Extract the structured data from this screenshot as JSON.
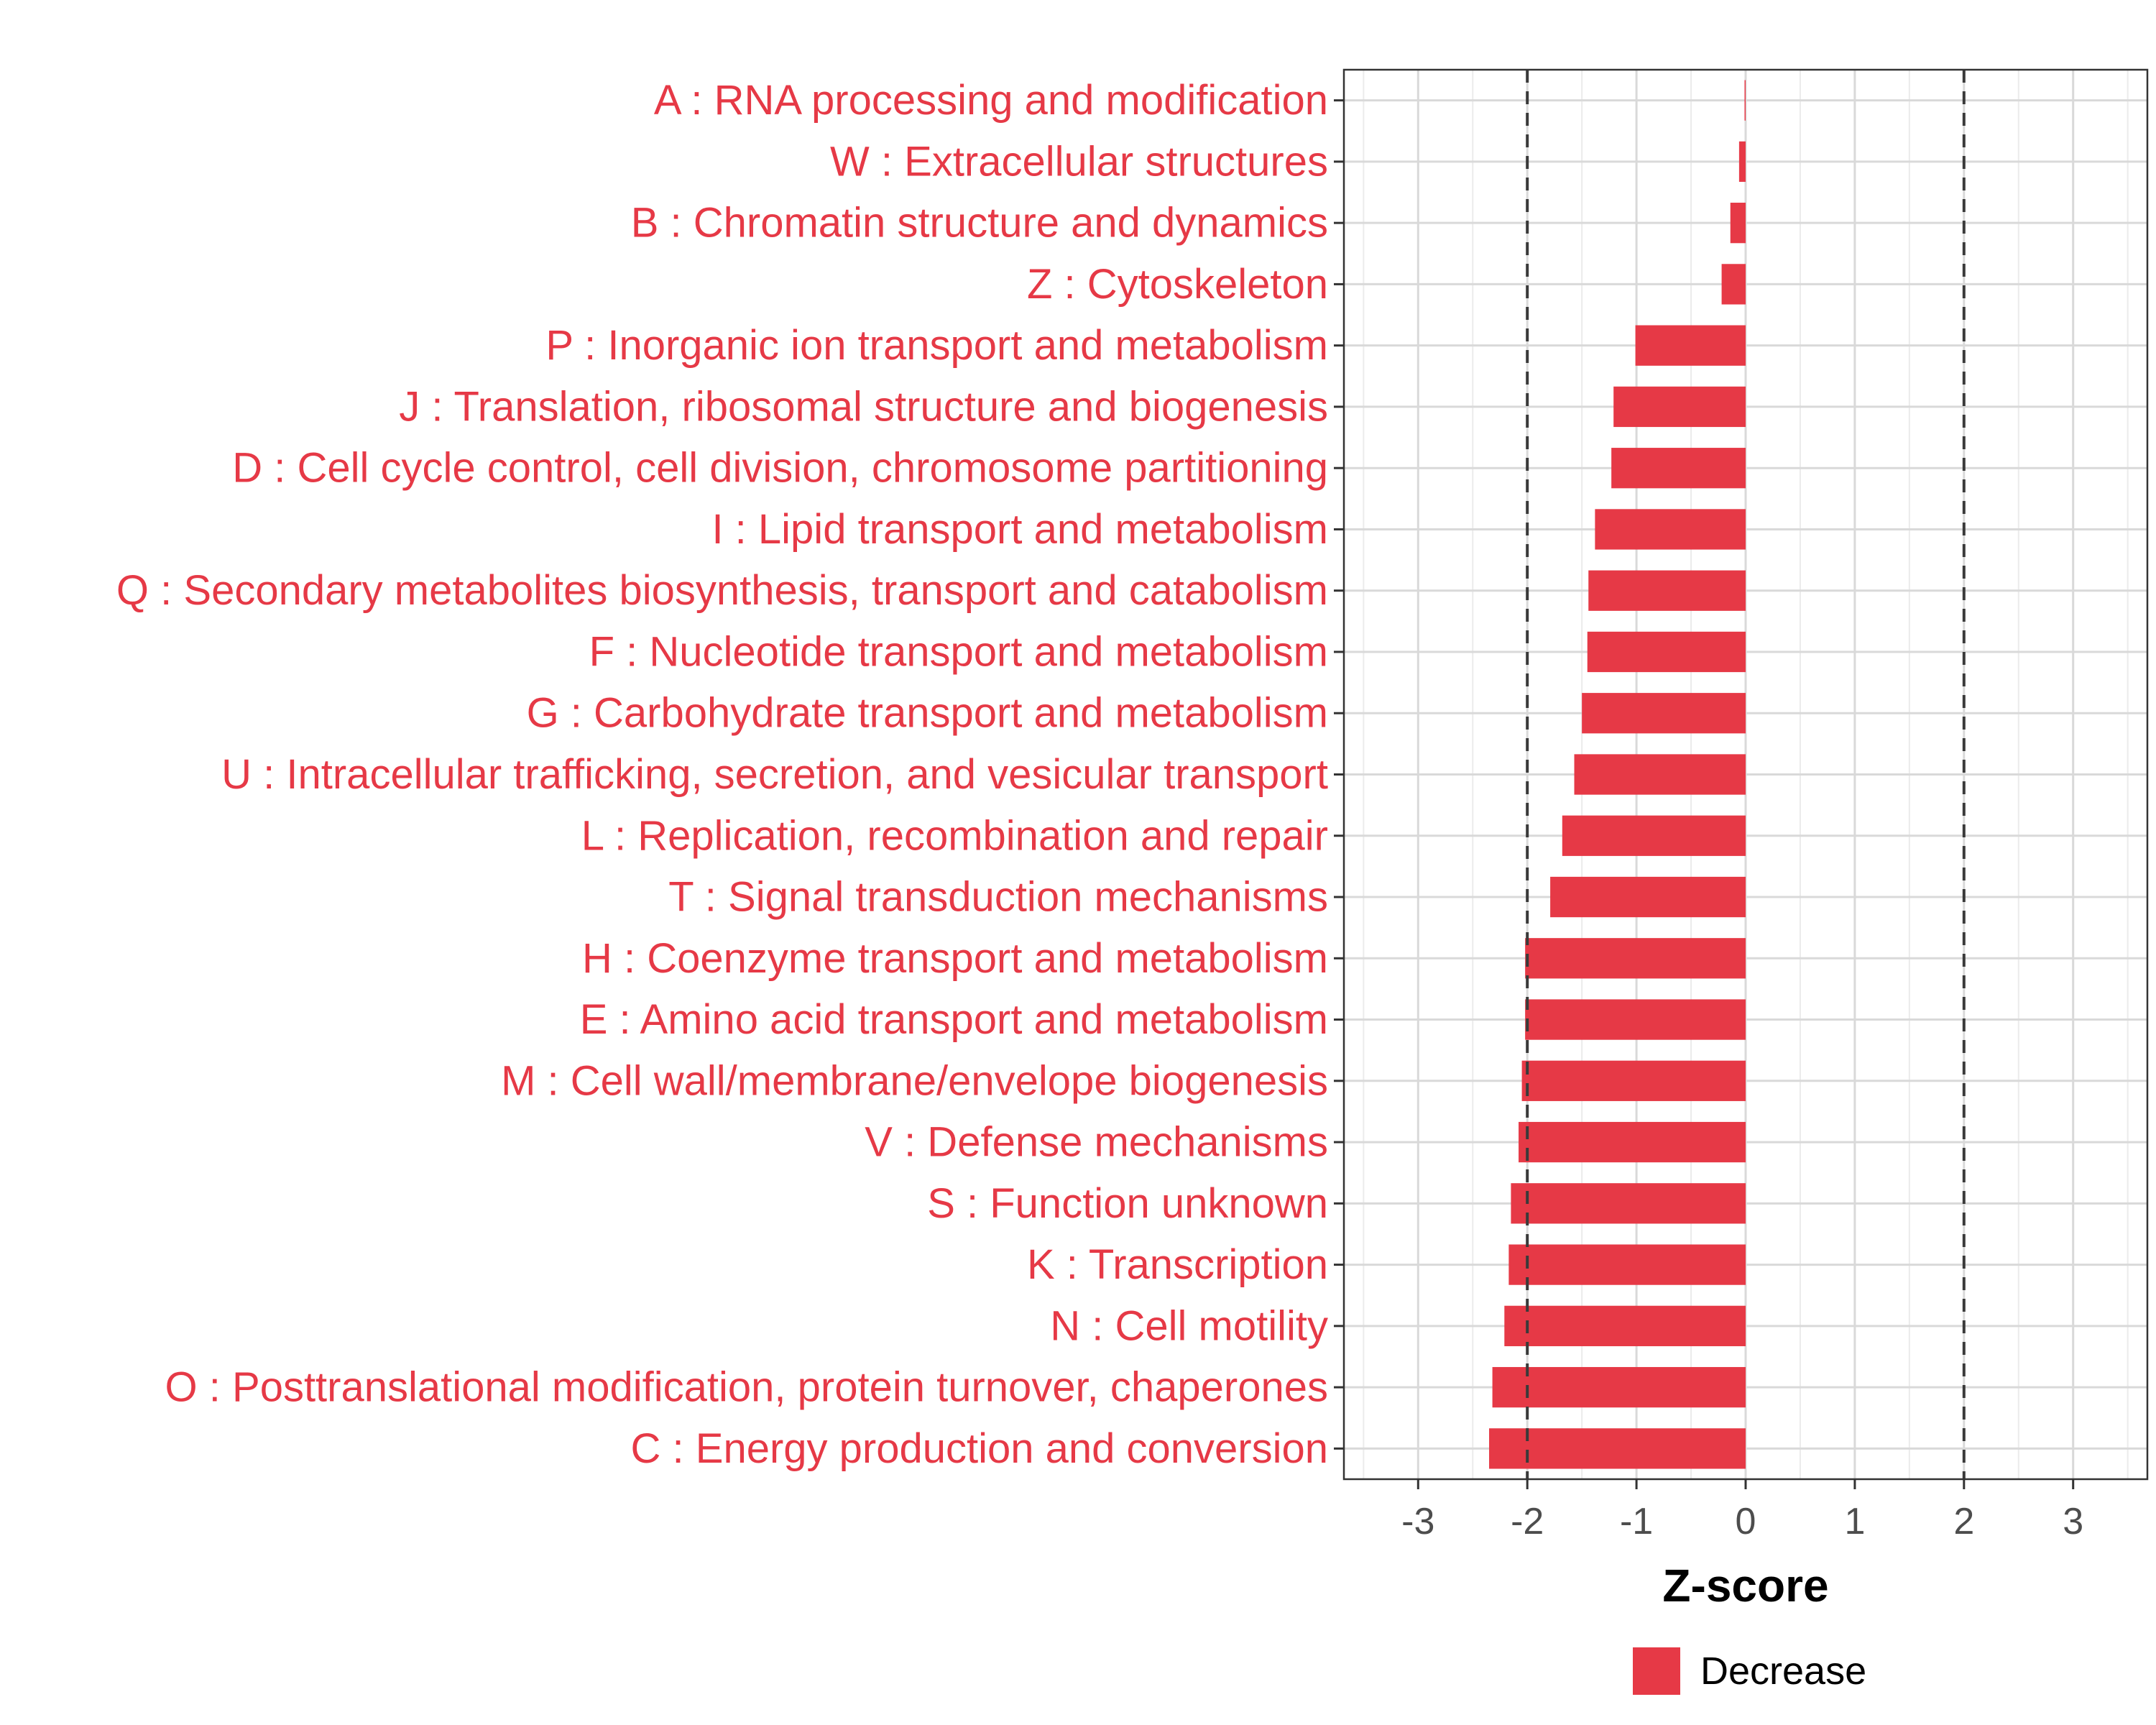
{
  "chart_data": {
    "type": "bar",
    "orientation": "horizontal",
    "categories": [
      "A : RNA processing and modification",
      "W : Extracellular structures",
      "B : Chromatin structure and dynamics",
      "Z : Cytoskeleton",
      "P : Inorganic ion transport and metabolism",
      "J : Translation, ribosomal structure and biogenesis",
      "D : Cell cycle control, cell division, chromosome partitioning",
      "I : Lipid transport and metabolism",
      "Q : Secondary metabolites biosynthesis, transport and catabolism",
      "F : Nucleotide transport and metabolism",
      "G : Carbohydrate transport and metabolism",
      "U : Intracellular trafficking, secretion, and vesicular transport",
      "L : Replication, recombination and repair",
      "T : Signal transduction mechanisms",
      "H : Coenzyme transport and metabolism",
      "E : Amino acid transport and metabolism",
      "M : Cell wall/membrane/envelope biogenesis",
      "V : Defense mechanisms",
      "S : Function unknown",
      "K : Transcription",
      "N : Cell motility",
      "O : Posttranslational modification, protein turnover, chaperones",
      "C : Energy production and conversion"
    ],
    "series": [
      {
        "name": "Decrease",
        "color": "#e63946",
        "values": [
          -0.01,
          -0.06,
          -0.14,
          -0.22,
          -1.01,
          -1.21,
          -1.23,
          -1.38,
          -1.44,
          -1.45,
          -1.5,
          -1.57,
          -1.68,
          -1.79,
          -2.02,
          -2.02,
          -2.05,
          -2.08,
          -2.15,
          -2.17,
          -2.21,
          -2.32,
          -2.35
        ]
      }
    ],
    "xlabel": "Z-score",
    "ylabel": "",
    "xlim": [
      -3.68,
      3.68
    ],
    "xticks": [
      -3,
      -2,
      -1,
      0,
      1,
      2,
      3
    ],
    "xtick_labels": [
      "-3",
      "-2",
      "-1",
      "0",
      "1",
      "2",
      "3"
    ],
    "reference_lines": [
      -2,
      2
    ],
    "grid": true,
    "legend": {
      "position": "bottom",
      "entries": [
        "Decrease"
      ]
    },
    "category_label_color": "#e63946"
  }
}
